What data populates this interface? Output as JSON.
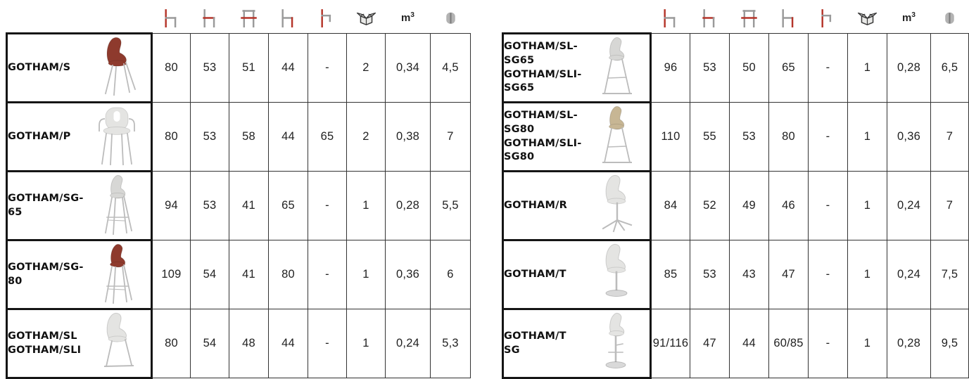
{
  "palette": {
    "accent_red": "#b5352a",
    "icon_gray": "#9a9a9a",
    "metal": "#bcbcbc",
    "chair_red": "#8e3a2d",
    "chair_white": "#e4e4e2",
    "chair_gray": "#d7d7d5",
    "chair_tan": "#c7b694"
  },
  "columns": [
    {
      "icon": "total-height-icon"
    },
    {
      "icon": "seat-depth-icon"
    },
    {
      "icon": "overall-width-icon"
    },
    {
      "icon": "seat-height-icon"
    },
    {
      "icon": "armrest-height-icon"
    },
    {
      "icon": "box-icon"
    },
    {
      "icon": "volume-label",
      "base": "m",
      "sup": "3"
    },
    {
      "icon": "weight-icon"
    }
  ],
  "tables": [
    {
      "id": "left",
      "rows": [
        {
          "name": [
            "GOTHAM/S"
          ],
          "chair": {
            "type": "side-chair",
            "color": "chair_red"
          },
          "values": [
            "80",
            "53",
            "51",
            "44",
            "-",
            "2",
            "0,34",
            "4,5"
          ]
        },
        {
          "name": [
            "GOTHAM/P"
          ],
          "chair": {
            "type": "armchair",
            "color": "chair_white"
          },
          "values": [
            "80",
            "53",
            "58",
            "44",
            "65",
            "2",
            "0,38",
            "7"
          ]
        },
        {
          "name": [
            "GOTHAM/SG-65"
          ],
          "chair": {
            "type": "stool-4leg",
            "color": "chair_gray"
          },
          "values": [
            "94",
            "53",
            "41",
            "65",
            "-",
            "1",
            "0,28",
            "5,5"
          ]
        },
        {
          "name": [
            "GOTHAM/SG-80"
          ],
          "chair": {
            "type": "stool-4leg",
            "color": "chair_red"
          },
          "values": [
            "109",
            "54",
            "41",
            "80",
            "-",
            "1",
            "0,36",
            "6"
          ]
        },
        {
          "name": [
            "GOTHAM/SL",
            "GOTHAM/SLI"
          ],
          "chair": {
            "type": "sled-chair",
            "color": "chair_white"
          },
          "values": [
            "80",
            "54",
            "48",
            "44",
            "-",
            "1",
            "0,24",
            "5,3"
          ]
        }
      ]
    },
    {
      "id": "right",
      "rows": [
        {
          "name": [
            "GOTHAM/SL-SG65",
            "GOTHAM/SLI-SG65"
          ],
          "chair": {
            "type": "sled-stool",
            "color": "chair_gray"
          },
          "values": [
            "96",
            "53",
            "50",
            "65",
            "-",
            "1",
            "0,28",
            "6,5"
          ]
        },
        {
          "name": [
            "GOTHAM/SL-SG80",
            "GOTHAM/SLI-SG80"
          ],
          "chair": {
            "type": "sled-stool",
            "color": "chair_tan"
          },
          "values": [
            "110",
            "55",
            "53",
            "80",
            "-",
            "1",
            "0,36",
            "7"
          ]
        },
        {
          "name": [
            "GOTHAM/R"
          ],
          "chair": {
            "type": "swivel-chair",
            "color": "chair_white"
          },
          "values": [
            "84",
            "52",
            "49",
            "46",
            "-",
            "1",
            "0,24",
            "7"
          ]
        },
        {
          "name": [
            "GOTHAM/T"
          ],
          "chair": {
            "type": "trumpet-chair",
            "color": "chair_white"
          },
          "values": [
            "85",
            "53",
            "43",
            "47",
            "-",
            "1",
            "0,24",
            "7,5"
          ]
        },
        {
          "name": [
            "GOTHAM/T SG"
          ],
          "chair": {
            "type": "gaslift-stool",
            "color": "chair_white"
          },
          "values": [
            "91/116",
            "47",
            "44",
            "60/85",
            "-",
            "1",
            "0,28",
            "9,5"
          ]
        }
      ]
    }
  ]
}
